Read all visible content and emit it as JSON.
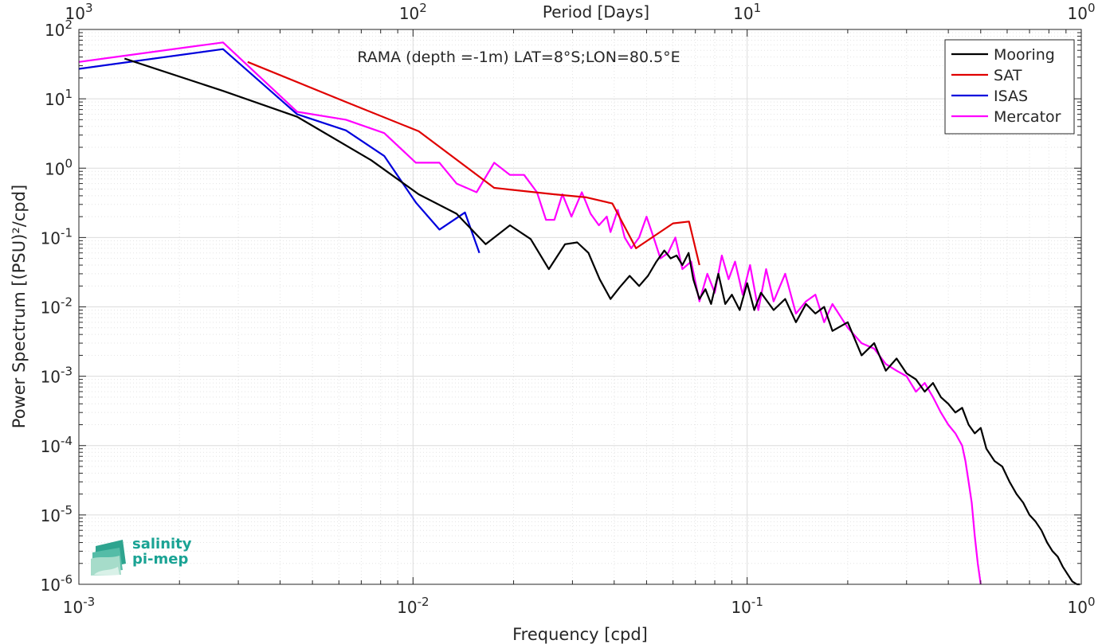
{
  "chart_data": {
    "type": "line",
    "title": "RAMA (depth =-1m) LAT=8°S;LON=80.5°E",
    "xlabel": "Frequency [cpd]",
    "ylabel": "Power Spectrum [(PSU)²/cpd]",
    "top_xlabel": "Period [Days]",
    "xscale": "log",
    "yscale": "log",
    "xlim": [
      0.001,
      1
    ],
    "ylim": [
      1e-06,
      100
    ],
    "grid": true,
    "legend_position": "top-right",
    "x_ticks": [
      "10-3",
      "10-2",
      "10-1",
      "100"
    ],
    "top_ticks": [
      "103",
      "102",
      "101",
      "100"
    ],
    "y_ticks": [
      "10-6",
      "10-5",
      "10-4",
      "10-3",
      "10-2",
      "10-1",
      "100",
      "101",
      "102"
    ],
    "series": [
      {
        "name": "Mooring",
        "color": "#000000",
        "x": [
          0.00137,
          0.0027,
          0.0045,
          0.0075,
          0.0104,
          0.0135,
          0.0165,
          0.0195,
          0.0225,
          0.0255,
          0.0285,
          0.031,
          0.0335,
          0.0362,
          0.039,
          0.0415,
          0.0445,
          0.0475,
          0.0505,
          0.0535,
          0.0565,
          0.059,
          0.0615,
          0.064,
          0.0668,
          0.069,
          0.072,
          0.075,
          0.078,
          0.082,
          0.086,
          0.09,
          0.095,
          0.1,
          0.105,
          0.11,
          0.12,
          0.13,
          0.14,
          0.15,
          0.16,
          0.17,
          0.18,
          0.2,
          0.22,
          0.24,
          0.26,
          0.28,
          0.3,
          0.32,
          0.34,
          0.36,
          0.38,
          0.4,
          0.42,
          0.44,
          0.46,
          0.48,
          0.5,
          0.52,
          0.55,
          0.58,
          0.61,
          0.64,
          0.67,
          0.7,
          0.73,
          0.76,
          0.79,
          0.82,
          0.85,
          0.88,
          0.91,
          0.94,
          0.97,
          0.99
        ],
        "y": [
          38,
          13,
          5.5,
          1.3,
          0.42,
          0.22,
          0.08,
          0.15,
          0.095,
          0.035,
          0.08,
          0.085,
          0.06,
          0.025,
          0.013,
          0.019,
          0.028,
          0.02,
          0.028,
          0.045,
          0.065,
          0.05,
          0.055,
          0.04,
          0.06,
          0.025,
          0.013,
          0.018,
          0.011,
          0.03,
          0.011,
          0.015,
          0.009,
          0.022,
          0.009,
          0.016,
          0.009,
          0.013,
          0.006,
          0.011,
          0.008,
          0.01,
          0.0045,
          0.006,
          0.002,
          0.003,
          0.0012,
          0.0018,
          0.0011,
          0.0009,
          0.0006,
          0.0008,
          0.0005,
          0.0004,
          0.0003,
          0.00035,
          0.0002,
          0.00015,
          0.00018,
          9e-05,
          6e-05,
          5e-05,
          3e-05,
          2e-05,
          1.5e-05,
          1e-05,
          8e-06,
          6e-06,
          4e-06,
          3e-06,
          2.5e-06,
          1.8e-06,
          1.4e-06,
          1.1e-06,
          1e-06,
          1e-06
        ]
      },
      {
        "name": "SAT",
        "color": "#e00000",
        "x": [
          0.0032,
          0.0063,
          0.0104,
          0.0175,
          0.0265,
          0.033,
          0.0395,
          0.0465,
          0.06,
          0.067,
          0.072
        ],
        "y": [
          34,
          9,
          3.4,
          0.52,
          0.42,
          0.38,
          0.31,
          0.07,
          0.16,
          0.17,
          0.04
        ]
      },
      {
        "name": "ISAS",
        "color": "#0000dd",
        "x": [
          0.001,
          0.0027,
          0.0045,
          0.0063,
          0.0082,
          0.0102,
          0.012,
          0.0143,
          0.0158
        ],
        "y": [
          27,
          52,
          6,
          3.5,
          1.5,
          0.32,
          0.13,
          0.23,
          0.06
        ]
      },
      {
        "name": "Mercator",
        "color": "#ff00ff",
        "x": [
          0.001,
          0.0027,
          0.0045,
          0.0063,
          0.0082,
          0.0102,
          0.012,
          0.0135,
          0.0155,
          0.0175,
          0.0195,
          0.0215,
          0.0235,
          0.025,
          0.0265,
          0.028,
          0.0298,
          0.032,
          0.034,
          0.036,
          0.038,
          0.039,
          0.041,
          0.043,
          0.045,
          0.0475,
          0.05,
          0.0525,
          0.055,
          0.058,
          0.061,
          0.064,
          0.068,
          0.072,
          0.076,
          0.08,
          0.084,
          0.088,
          0.092,
          0.097,
          0.102,
          0.108,
          0.114,
          0.12,
          0.13,
          0.14,
          0.15,
          0.16,
          0.17,
          0.18,
          0.2,
          0.22,
          0.24,
          0.26,
          0.28,
          0.3,
          0.32,
          0.34,
          0.36,
          0.38,
          0.4,
          0.42,
          0.44,
          0.45,
          0.46,
          0.47,
          0.48,
          0.49,
          0.5
        ],
        "y": [
          34,
          65,
          6.5,
          5,
          3.2,
          1.2,
          1.2,
          0.6,
          0.45,
          1.2,
          0.8,
          0.8,
          0.45,
          0.18,
          0.18,
          0.42,
          0.2,
          0.45,
          0.22,
          0.15,
          0.2,
          0.12,
          0.25,
          0.1,
          0.07,
          0.1,
          0.2,
          0.1,
          0.05,
          0.06,
          0.1,
          0.035,
          0.045,
          0.012,
          0.03,
          0.016,
          0.055,
          0.025,
          0.045,
          0.015,
          0.04,
          0.009,
          0.035,
          0.012,
          0.03,
          0.008,
          0.012,
          0.015,
          0.006,
          0.011,
          0.005,
          0.003,
          0.0025,
          0.0015,
          0.0012,
          0.001,
          0.0006,
          0.0008,
          0.0005,
          0.0003,
          0.0002,
          0.00015,
          0.0001,
          6e-05,
          3e-05,
          1.5e-05,
          5e-06,
          2e-06,
          1e-06
        ]
      }
    ]
  },
  "logo": {
    "line1": "salinity",
    "line2": "pi-mep"
  }
}
